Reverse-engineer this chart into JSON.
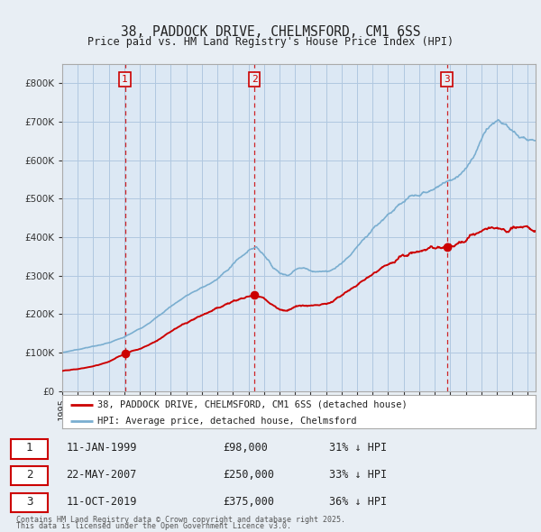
{
  "title": "38, PADDOCK DRIVE, CHELMSFORD, CM1 6SS",
  "subtitle": "Price paid vs. HM Land Registry's House Price Index (HPI)",
  "legend_line1": "38, PADDOCK DRIVE, CHELMSFORD, CM1 6SS (detached house)",
  "legend_line2": "HPI: Average price, detached house, Chelmsford",
  "footer1": "Contains HM Land Registry data © Crown copyright and database right 2025.",
  "footer2": "This data is licensed under the Open Government Licence v3.0.",
  "sale1_date": "11-JAN-1999",
  "sale1_price": "£98,000",
  "sale1_hpi": "31% ↓ HPI",
  "sale2_date": "22-MAY-2007",
  "sale2_price": "£250,000",
  "sale2_hpi": "33% ↓ HPI",
  "sale3_date": "11-OCT-2019",
  "sale3_price": "£375,000",
  "sale3_hpi": "36% ↓ HPI",
  "sale1_year": 1999.04,
  "sale1_value": 98000,
  "sale2_year": 2007.39,
  "sale2_value": 250000,
  "sale3_year": 2019.78,
  "sale3_value": 375000,
  "red_color": "#cc0000",
  "blue_color": "#7aaed0",
  "bg_color": "#e8eef4",
  "plot_bg": "#dce8f4",
  "grid_color": "#b0c8e0",
  "vline_color": "#cc0000",
  "ylim": [
    0,
    850000
  ],
  "xlim_start": 1995,
  "xlim_end": 2025.5
}
